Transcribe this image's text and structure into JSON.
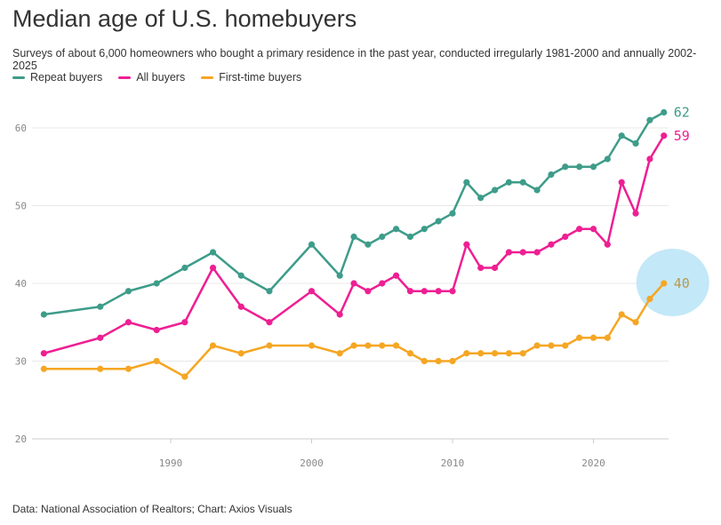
{
  "title": "Median age of U.S. homebuyers",
  "subtitle": "Surveys of about 6,000 homeowners who bought a primary residence in the past year, conducted irregularly 1981-2000 and annually 2002-2025",
  "source": "Data: National Association of Realtors; Chart: Axios Visuals",
  "chart_data": {
    "type": "line",
    "title": "Median age of U.S. homebuyers",
    "xlabel": "",
    "ylabel": "",
    "xlim": [
      1980,
      2026
    ],
    "ylim": [
      20,
      62
    ],
    "x_ticks": [
      1990,
      2000,
      2010,
      2020
    ],
    "y_ticks": [
      20,
      30,
      40,
      50,
      60
    ],
    "grid": "horizontal",
    "legend": "top-left",
    "x": [
      1981,
      1985,
      1987,
      1989,
      1991,
      1993,
      1995,
      1997,
      2000,
      2002,
      2003,
      2004,
      2005,
      2006,
      2007,
      2008,
      2009,
      2010,
      2011,
      2012,
      2013,
      2014,
      2015,
      2016,
      2017,
      2018,
      2019,
      2020,
      2021,
      2022,
      2023,
      2024,
      2025
    ],
    "series": [
      {
        "name": "Repeat buyers",
        "color": "#3e9c8a",
        "end_label": "62",
        "values": [
          36,
          37,
          39,
          40,
          42,
          44,
          41,
          39,
          45,
          41,
          46,
          45,
          46,
          47,
          46,
          47,
          48,
          49,
          53,
          51,
          52,
          53,
          53,
          52,
          54,
          55,
          55,
          55,
          56,
          59,
          58,
          61,
          62
        ]
      },
      {
        "name": "All buyers",
        "color": "#ee1f93",
        "end_label": "59",
        "values": [
          31,
          33,
          35,
          34,
          35,
          42,
          37,
          35,
          39,
          36,
          40,
          39,
          40,
          41,
          39,
          39,
          39,
          39,
          45,
          42,
          42,
          44,
          44,
          44,
          45,
          46,
          47,
          47,
          45,
          53,
          49,
          56,
          59
        ]
      },
      {
        "name": "First-time buyers",
        "color": "#f5a623",
        "end_label": "40",
        "values": [
          29,
          29,
          29,
          30,
          28,
          32,
          31,
          32,
          32,
          31,
          32,
          32,
          32,
          32,
          31,
          30,
          30,
          30,
          31,
          31,
          31,
          31,
          31,
          32,
          32,
          32,
          33,
          33,
          33,
          36,
          35,
          38,
          40
        ]
      }
    ],
    "highlight": {
      "series": "First-time buyers",
      "x": 2025,
      "color": "#bde6f7"
    }
  }
}
